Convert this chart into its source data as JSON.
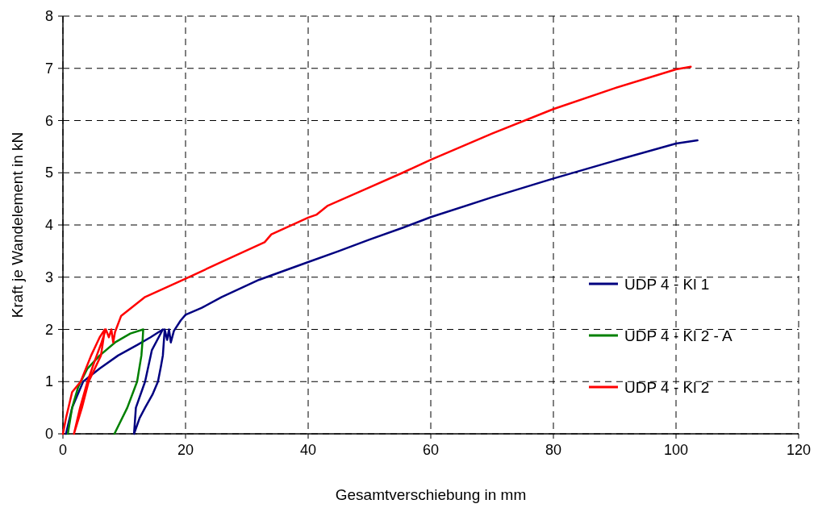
{
  "chart_data": {
    "type": "line",
    "xlabel": "Gesamtverschiebung in mm",
    "ylabel": "Kraft je Wandelement in kN",
    "xlim": [
      0,
      120
    ],
    "ylim": [
      0,
      8
    ],
    "xticks": [
      0,
      20,
      40,
      60,
      80,
      100,
      120
    ],
    "yticks": [
      0,
      1,
      2,
      3,
      4,
      5,
      6,
      7,
      8
    ],
    "grid": true,
    "legend": "right",
    "marker": "none",
    "line_style": "solid",
    "series": [
      {
        "name": "UDP 4 - Kl 1",
        "color": "#000080",
        "x": [
          0.5,
          1.5,
          3.3,
          6.0,
          9.0,
          12.1,
          14.3,
          16.3,
          14.5,
          13.4,
          11.9,
          11.6,
          12.5,
          13.4,
          14.6,
          15.5,
          16.0,
          16.3,
          16.6,
          17.0,
          17.3,
          17.6,
          18.1,
          19.2,
          20,
          22.6,
          25.9,
          32,
          40,
          45,
          50,
          55.5,
          60,
          70,
          80,
          90,
          100,
          103.5
        ],
        "values": [
          0,
          0.5,
          1.0,
          1.25,
          1.5,
          1.7,
          1.85,
          2.0,
          1.6,
          1.0,
          0.5,
          0,
          0.3,
          0.5,
          0.75,
          1.0,
          1.3,
          1.5,
          2.0,
          1.8,
          2.0,
          1.75,
          1.97,
          2.17,
          2.28,
          2.41,
          2.62,
          2.95,
          3.29,
          3.5,
          3.72,
          3.95,
          4.15,
          4.53,
          4.89,
          5.23,
          5.56,
          5.62
        ]
      },
      {
        "name": "UDP 4 - Kl 2 - A",
        "color": "#008000",
        "x": [
          0.8,
          1.5,
          2.5,
          4.0,
          6.0,
          8.5,
          11.0,
          13.1,
          13.0,
          12.8,
          12.1,
          10.5,
          8.4
        ],
        "values": [
          0,
          0.5,
          0.9,
          1.25,
          1.5,
          1.75,
          1.92,
          2.0,
          1.8,
          1.5,
          1.0,
          0.5,
          0
        ]
      },
      {
        "name": "UDP 4 - Kl 2",
        "color": "#ff0000",
        "x": [
          0,
          0.5,
          1.5,
          2.9,
          4.6,
          6.0,
          6.84,
          6.2,
          4.2,
          3.1,
          1.8,
          2.8,
          4.0,
          5.2,
          6.3,
          7.0,
          7.5,
          7.9,
          8.2,
          8.5,
          9.5,
          13.4,
          20,
          26,
          32.9,
          34.0,
          40,
          41.4,
          43.2,
          50,
          55.4,
          60,
          70,
          80,
          90,
          100,
          102.4
        ],
        "values": [
          0,
          0.3,
          0.8,
          1.0,
          1.5,
          1.85,
          2.0,
          1.5,
          1.0,
          0.5,
          0,
          0.5,
          1.0,
          1.4,
          1.75,
          2.0,
          1.85,
          2.0,
          1.75,
          1.95,
          2.26,
          2.62,
          2.97,
          3.3,
          3.67,
          3.82,
          4.14,
          4.2,
          4.37,
          4.72,
          5.0,
          5.25,
          5.75,
          6.22,
          6.62,
          6.98,
          7.03
        ]
      }
    ]
  }
}
